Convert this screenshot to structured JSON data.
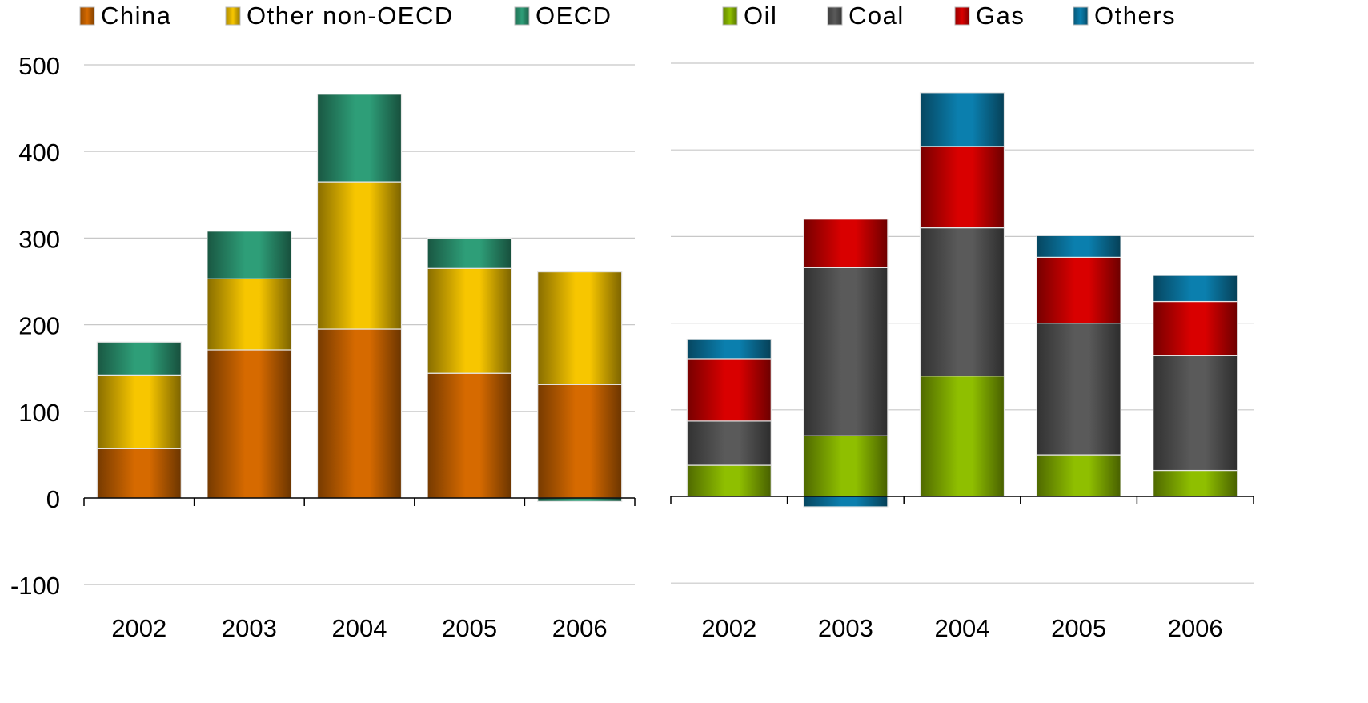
{
  "chart_data": [
    {
      "type": "bar",
      "stacked": true,
      "categories": [
        "2002",
        "2003",
        "2004",
        "2005",
        "2006"
      ],
      "series": [
        {
          "name": "China",
          "values": [
            57,
            171,
            195,
            144,
            131
          ],
          "color": "#d66a00"
        },
        {
          "name": "Other non-OECD",
          "values": [
            85,
            82,
            170,
            121,
            130
          ],
          "color": "#f7c600"
        },
        {
          "name": "OECD",
          "values": [
            38,
            55,
            101,
            35,
            -4
          ],
          "color": "#2e9e78"
        }
      ],
      "ylim": [
        -100,
        500
      ],
      "yticks": [
        "-100",
        "0",
        "100",
        "200",
        "300",
        "400",
        "500"
      ],
      "grid": true,
      "legend": "top"
    },
    {
      "type": "bar",
      "stacked": true,
      "categories": [
        "2002",
        "2003",
        "2004",
        "2005",
        "2006"
      ],
      "series": [
        {
          "name": "Oil",
          "values": [
            36,
            70,
            139,
            48,
            30
          ],
          "color": "#8fbf00"
        },
        {
          "name": "Coal",
          "values": [
            51,
            194,
            171,
            152,
            133
          ],
          "color": "#5a5a5a"
        },
        {
          "name": "Gas",
          "values": [
            72,
            56,
            94,
            76,
            62
          ],
          "color": "#d90000"
        },
        {
          "name": "Others",
          "values": [
            22,
            -12,
            62,
            25,
            30
          ],
          "color": "#0b7fae"
        }
      ],
      "ylim": [
        -100,
        500
      ],
      "grid": true,
      "legend": "top"
    }
  ]
}
